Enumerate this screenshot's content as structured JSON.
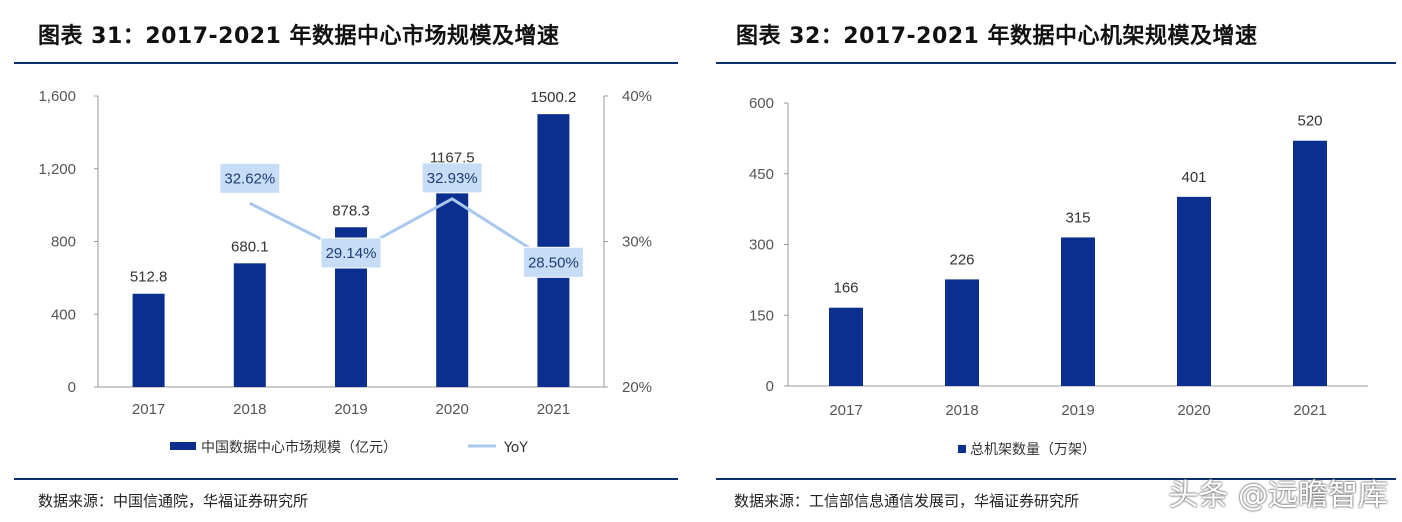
{
  "left": {
    "title": "图表 31：2017-2021 年数据中心市场规模及增速",
    "source": "数据来源：中国信通院，华福证券研究所",
    "legend": {
      "bar": "中国数据中心市场规模（亿元）",
      "line": "YoY"
    }
  },
  "right": {
    "title": "图表 32：2017-2021 年数据中心机架规模及增速",
    "source": "数据来源：工信部信息通信发展司，华福证券研究所",
    "legend": {
      "bar": "总机架数量（万架）"
    }
  },
  "watermark": "头条 @远瞻智库",
  "colors": {
    "bar": "#0a2f8f",
    "line": "#a9c8ef",
    "label_box": "#c7ddf7",
    "rule": "#0c2f6b"
  },
  "chart_data": [
    {
      "type": "bar",
      "categories": [
        "2017",
        "2018",
        "2019",
        "2020",
        "2021"
      ],
      "series": [
        {
          "name": "中国数据中心市场规模（亿元）",
          "values": [
            512.8,
            680.1,
            878.3,
            1167.5,
            1500.2
          ],
          "labels": [
            "512.8",
            "680.1",
            "878.3",
            "1167.5",
            "1500.2"
          ]
        },
        {
          "name": "YoY",
          "type": "line",
          "axis": "right",
          "x": [
            "2018",
            "2019",
            "2020",
            "2021"
          ],
          "values": [
            32.62,
            29.14,
            32.93,
            28.5
          ],
          "labels": [
            "32.62%",
            "29.14%",
            "32.93%",
            "28.50%"
          ]
        }
      ],
      "ylim": [
        0,
        1600
      ],
      "yticks": [
        "0",
        "400",
        "800",
        "1,200",
        "1,600"
      ],
      "y2lim": [
        20,
        40
      ],
      "y2ticks": [
        "20%",
        "30%",
        "40%"
      ],
      "legend_position": "bottom"
    },
    {
      "type": "bar",
      "categories": [
        "2017",
        "2018",
        "2019",
        "2020",
        "2021"
      ],
      "series": [
        {
          "name": "总机架数量（万架）",
          "values": [
            166,
            226,
            315,
            401,
            520
          ],
          "labels": [
            "166",
            "226",
            "315",
            "401",
            "520"
          ]
        }
      ],
      "ylim": [
        0,
        600
      ],
      "yticks": [
        "0",
        "150",
        "300",
        "450",
        "600"
      ],
      "legend_position": "bottom"
    }
  ]
}
